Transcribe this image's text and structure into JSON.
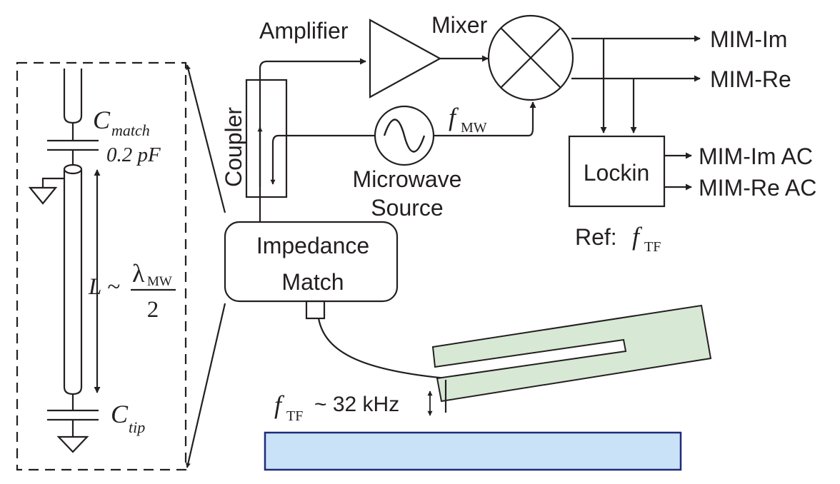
{
  "labels": {
    "amplifier": "Amplifier",
    "mixer": "Mixer",
    "coupler": "Coupler",
    "microwave_source_line1": "Microwave",
    "microwave_source_line2": "Source",
    "impedance_match_line1": "Impedance",
    "impedance_match_line2": "Match",
    "lockin": "Lockin",
    "ref_prefix": "Ref:",
    "f_symbol": "f",
    "sub_tf": "TF",
    "sub_mw": "MW",
    "freq_value": "~ 32 kHz"
  },
  "outputs": {
    "mim_im": "MIM-Im",
    "mim_re": "MIM-Re",
    "mim_im_ac": "MIM-Im AC",
    "mim_re_ac": "MIM-Re AC"
  },
  "circuit": {
    "c_symbol": "C",
    "c_match_sub": "match",
    "c_match_value": "0.2 pF",
    "c_tip_sub": "tip",
    "length_expr": "L ~",
    "lambda": "λ",
    "lambda_sub": "MW",
    "denominator": "2"
  },
  "colors": {
    "line": "#231f20",
    "tuning_fork_fill": "#d7e8d5",
    "sample_fill": "#c9e2f7",
    "sample_stroke": "#1f2a7a"
  }
}
